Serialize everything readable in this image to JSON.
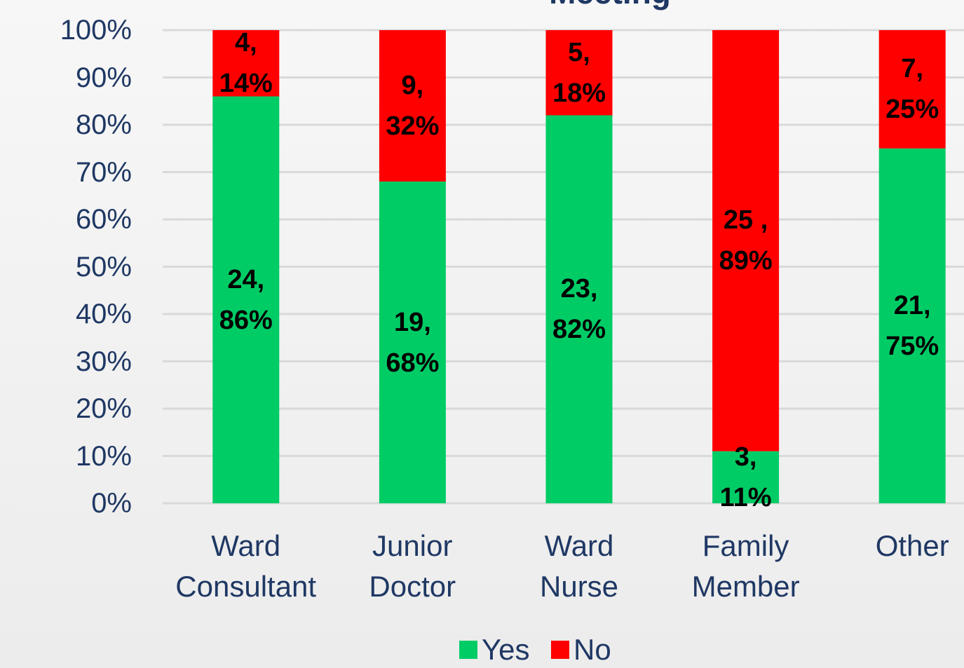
{
  "chart_data": {
    "type": "stacked_bar",
    "title": "Meeting",
    "categories": [
      "Ward Consultant",
      "Junior Doctor",
      "Ward Nurse",
      "Family Member",
      "Other"
    ],
    "series": [
      {
        "name": "Yes",
        "color": "#00cc66",
        "values": [
          86,
          68,
          82,
          11,
          75
        ],
        "value_labels": [
          "24, 86%",
          "19, 68%",
          "23, 82%",
          "3, 11%",
          "21, 75%"
        ]
      },
      {
        "name": "No",
        "color": "#ff0000",
        "values": [
          14,
          32,
          18,
          89,
          25
        ],
        "value_labels": [
          "4, 14%",
          "9, 32%",
          "5, 18%",
          "25 , 89%",
          "7, 25%"
        ]
      }
    ],
    "ylim": [
      0,
      100
    ],
    "yticks": [
      {
        "value": 0,
        "label": "0%"
      },
      {
        "value": 10,
        "label": "10%"
      },
      {
        "value": 20,
        "label": "20%"
      },
      {
        "value": 30,
        "label": "30%"
      },
      {
        "value": 40,
        "label": "40%"
      },
      {
        "value": 50,
        "label": "50%"
      },
      {
        "value": 60,
        "label": "60%"
      },
      {
        "value": 70,
        "label": "70%"
      },
      {
        "value": 80,
        "label": "80%"
      },
      {
        "value": 90,
        "label": "90%"
      },
      {
        "value": 100,
        "label": "100%"
      }
    ],
    "grid": true,
    "legend": "bottom"
  }
}
